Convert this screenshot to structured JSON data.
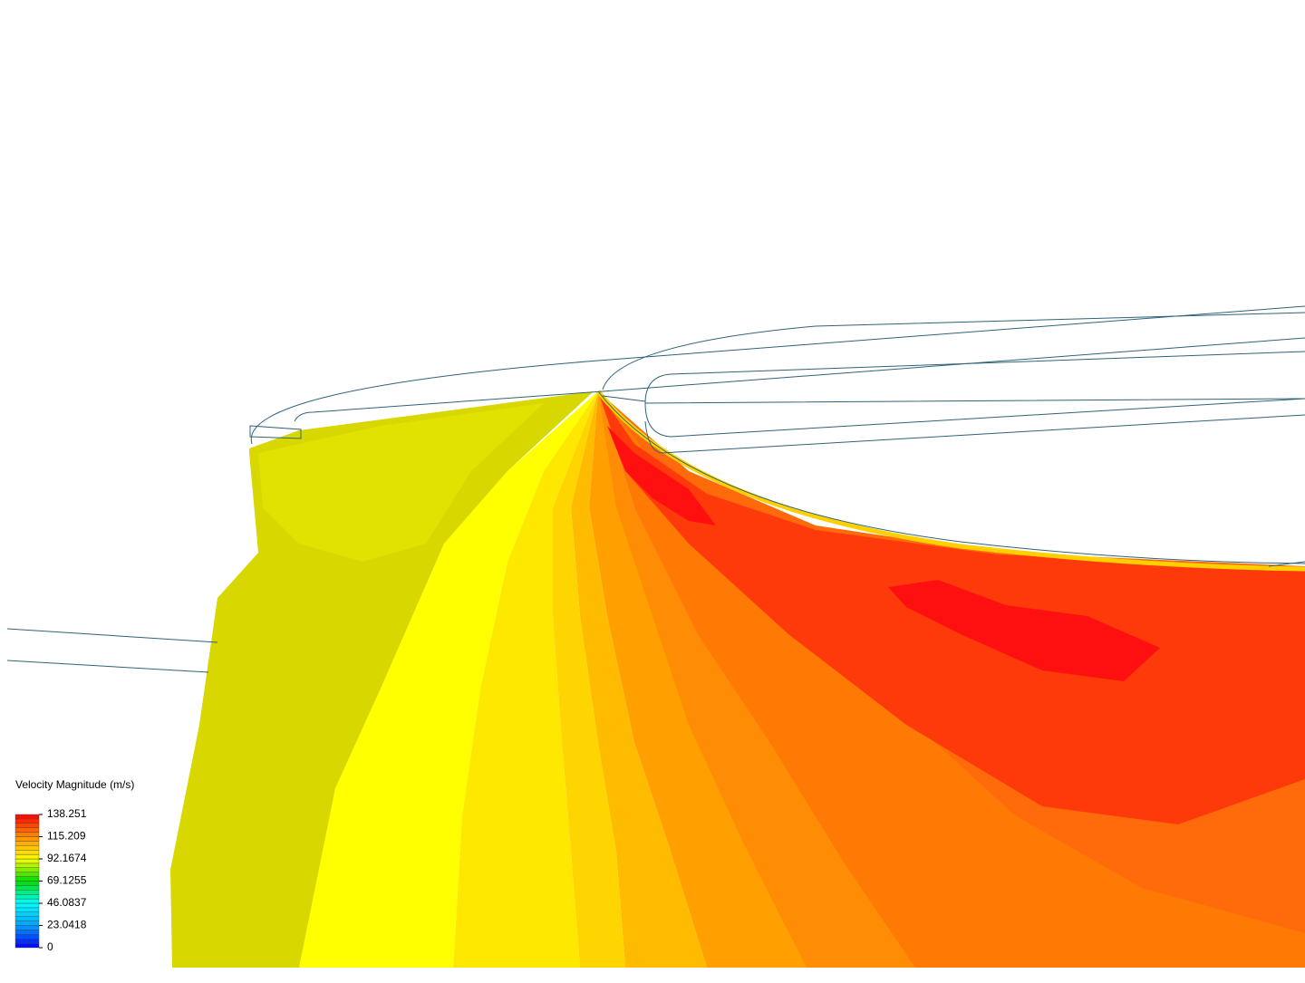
{
  "legend": {
    "title": "Velocity Magnitude (m/s)",
    "range": [
      0,
      138.251
    ],
    "ticks": [
      138.251,
      115.209,
      92.1674,
      69.1255,
      46.0837,
      23.0418,
      0
    ]
  }
}
